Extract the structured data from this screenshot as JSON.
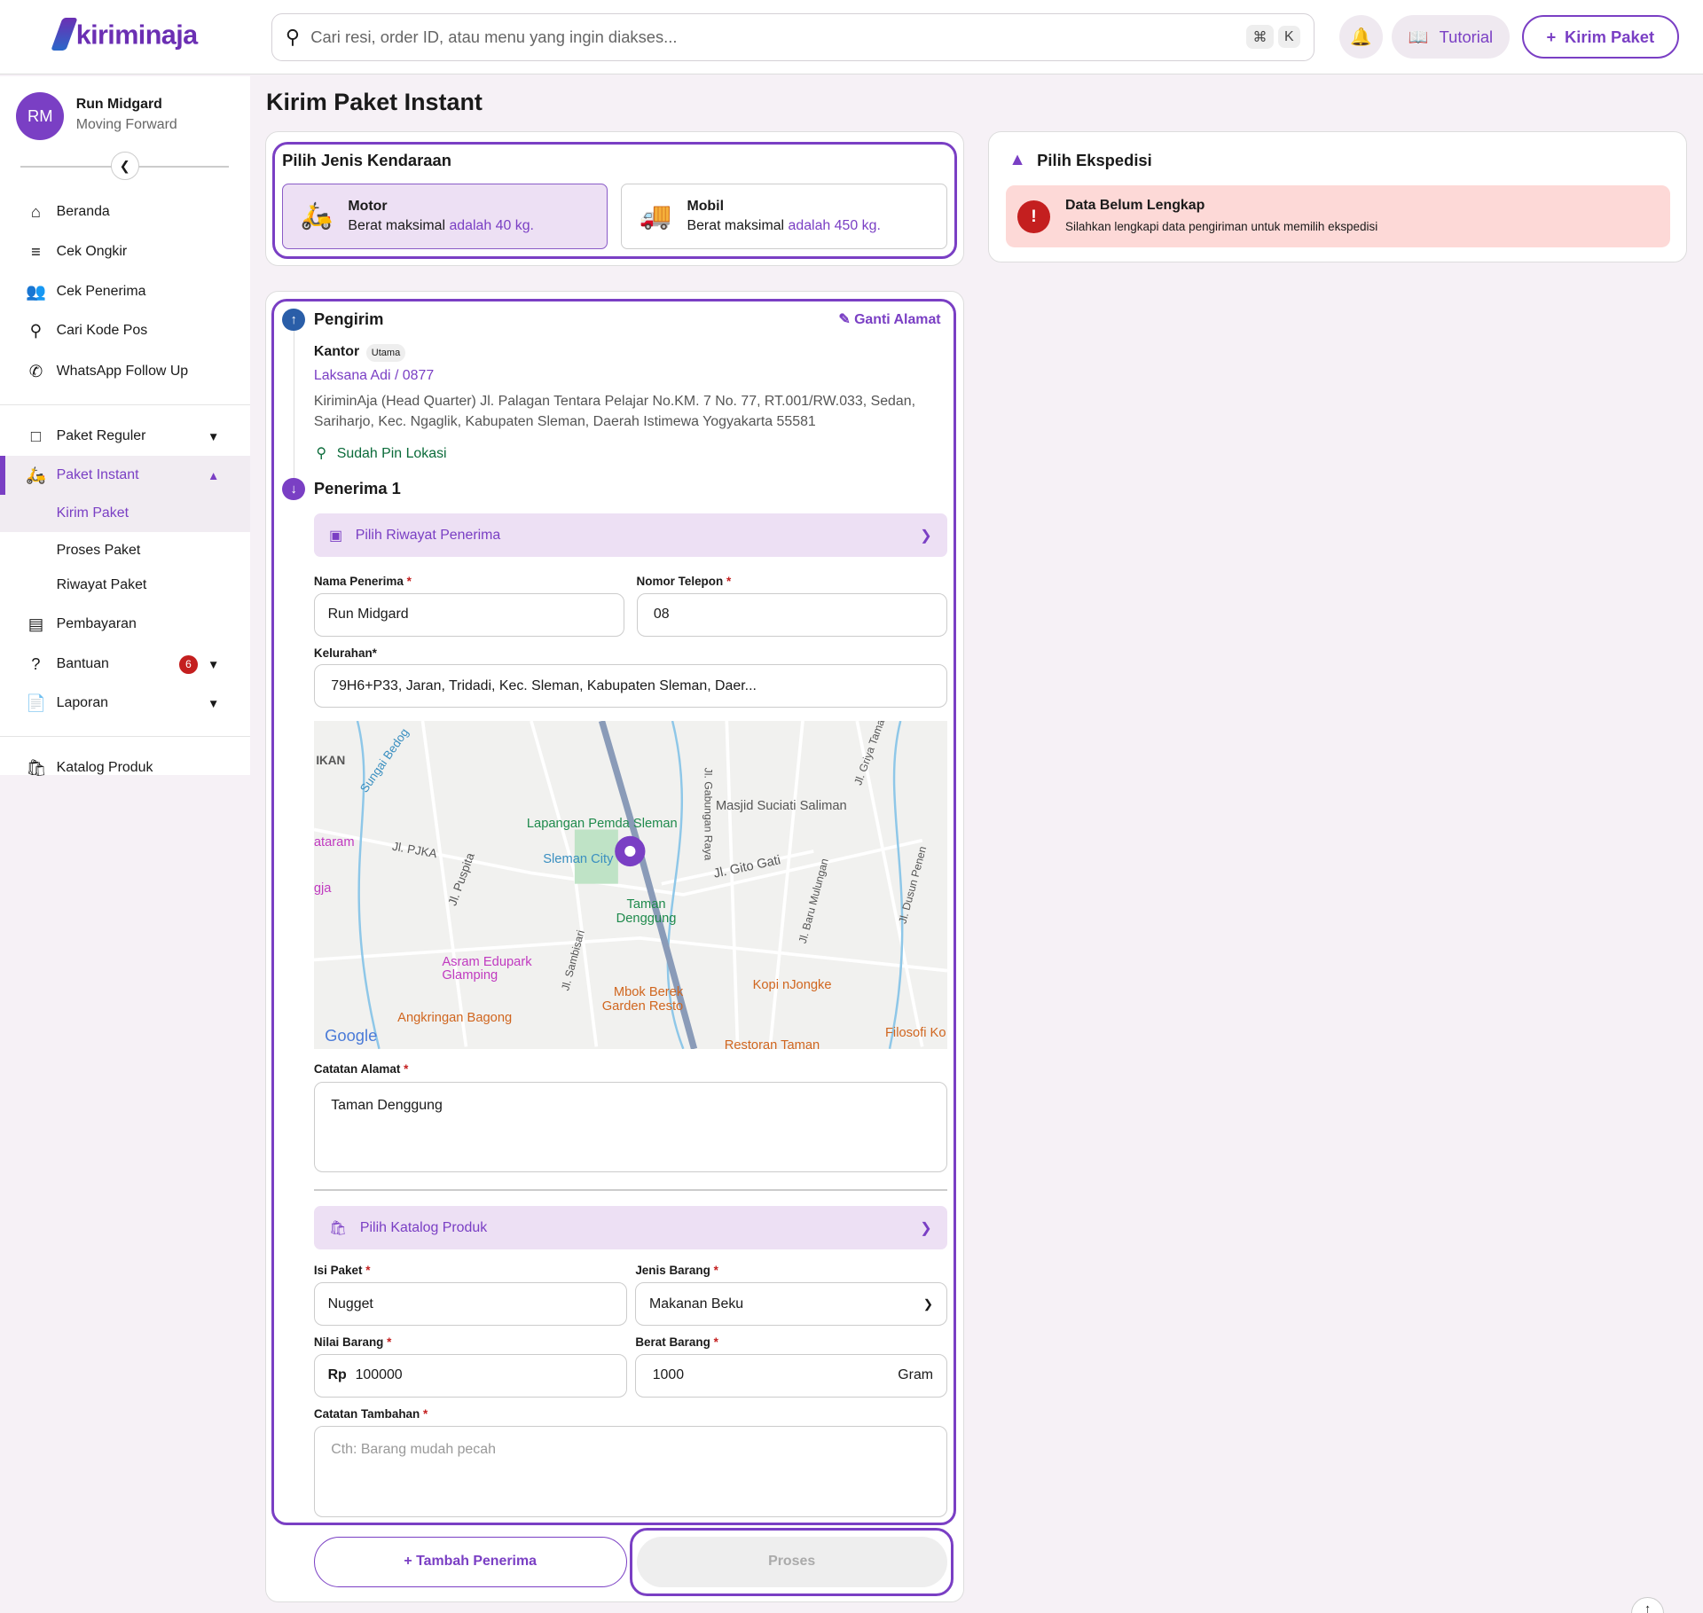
{
  "header": {
    "logo": "kiriminaja",
    "search_placeholder": "Cari resi, order ID, atau menu yang ingin diakses...",
    "kbd_cmd": "⌘",
    "kbd_k": "K",
    "tutorial": "Tutorial",
    "kirim_paket": "Kirim Paket"
  },
  "user": {
    "initials": "RM",
    "name": "Run Midgard",
    "subtitle": "Moving Forward"
  },
  "sidebar": {
    "items": [
      {
        "label": "Beranda",
        "icon": "home-icon"
      },
      {
        "label": "Cek Ongkir",
        "icon": "search-list-icon"
      },
      {
        "label": "Cek Penerima",
        "icon": "users-icon"
      },
      {
        "label": "Cari Kode Pos",
        "icon": "search-icon"
      },
      {
        "label": "WhatsApp Follow Up",
        "icon": "whatsapp-icon"
      },
      {
        "label": "Paket Reguler",
        "icon": "box-icon"
      },
      {
        "label": "Paket Instant",
        "icon": "scooter-icon"
      },
      {
        "label": "Pembayaran",
        "icon": "money-icon"
      },
      {
        "label": "Bantuan",
        "icon": "help-icon",
        "badge": "6"
      },
      {
        "label": "Laporan",
        "icon": "report-icon"
      },
      {
        "label": "Katalog Produk",
        "icon": "bag-icon"
      }
    ],
    "subitems": [
      "Kirim Paket",
      "Proses Paket",
      "Riwayat Paket"
    ]
  },
  "page": {
    "title": "Kirim Paket Instant"
  },
  "vehicle": {
    "title": "Pilih Jenis Kendaraan",
    "options": [
      {
        "name": "Motor",
        "desc": "Berat maksimal ",
        "limit": "adalah 40 kg.",
        "selected": true
      },
      {
        "name": "Mobil",
        "desc": "Berat maksimal ",
        "limit": "adalah 450 kg.",
        "selected": false
      }
    ]
  },
  "ekspedisi": {
    "title": "Pilih Ekspedisi",
    "alert_title": "Data Belum Lengkap",
    "alert_text": "Silahkan lengkapi data pengiriman untuk memilih ekspedisi"
  },
  "sender": {
    "title": "Pengirim",
    "change": "Ganti Alamat",
    "type": "Kantor",
    "tag": "Utama",
    "contact": "Laksana Adi / 0877",
    "address": "KiriminAja (Head Quarter) Jl. Palagan Tentara Pelajar No.KM. 7 No. 77, RT.001/RW.033, Sedan, Sariharjo, Kec. Ngaglik, Kabupaten Sleman, Daerah Istimewa Yogyakarta 55581",
    "pin": "Sudah Pin Lokasi"
  },
  "receiver": {
    "title": "Penerima 1",
    "history": "Pilih Riwayat Penerima",
    "name_label": "Nama Penerima",
    "name": "Run Midgard",
    "phone_label": "Nomor Telepon",
    "phone": "08",
    "kel_label": "Kelurahan*",
    "kel": "79H6+P33, Jaran, Tridadi, Kec. Sleman, Kabupaten Sleman, Daer...",
    "note_label": "Catatan Alamat",
    "note": "Taman Denggung"
  },
  "map": {
    "labels": [
      "IKAN",
      "Sungai Bedog",
      "ataram",
      "Jl. PJKA",
      "gja",
      "Jl. Puspita",
      "Lapangan Pemda Sleman",
      "Sleman City",
      "Jl. Gabungan Raya",
      "Masjid Suciati Saliman",
      "Jl. Gito Gati",
      "Taman Denggung",
      "Jl. Griya Taman",
      "Jl. Baru Mulungan",
      "Jl. Dusun Penen",
      "Asram Edupark Glamping",
      "Jl. Sambisari",
      "Mbok Berek Garden Resto",
      "Kopi nJongke",
      "Angkringan Bagong",
      "Restoran Taman",
      "Filosofi Ko",
      "Google"
    ]
  },
  "product": {
    "catalog": "Pilih Katalog Produk",
    "isi_label": "Isi Paket",
    "isi": "Nugget",
    "jenis_label": "Jenis Barang",
    "jenis": "Makanan Beku",
    "nilai_label": "Nilai Barang",
    "currency": "Rp",
    "nilai": "100000",
    "berat_label": "Berat Barang",
    "berat": "1000",
    "unit": "Gram",
    "catatan_label": "Catatan Tambahan",
    "catatan_placeholder": "Cth: Barang mudah pecah"
  },
  "actions": {
    "add": "+ Tambah Penerima",
    "process": "Proses"
  },
  "colors": {
    "accent": "#7a3fc4",
    "error": "#c41f1f",
    "success": "#0b6b3a"
  }
}
